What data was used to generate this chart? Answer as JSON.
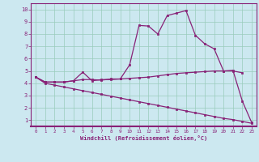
{
  "xlabel": "Windchill (Refroidissement éolien,°C)",
  "xlim": [
    -0.5,
    23.5
  ],
  "ylim": [
    0.5,
    10.5
  ],
  "xticks": [
    0,
    1,
    2,
    3,
    4,
    5,
    6,
    7,
    8,
    9,
    10,
    11,
    12,
    13,
    14,
    15,
    16,
    17,
    18,
    19,
    20,
    21,
    22,
    23
  ],
  "yticks": [
    1,
    2,
    3,
    4,
    5,
    6,
    7,
    8,
    9,
    10
  ],
  "bg_color": "#cce8f0",
  "line_color": "#882277",
  "grid_color": "#99ccbb",
  "spine_color": "#882277",
  "line2_x": [
    0,
    1,
    2,
    3,
    4,
    5,
    6,
    7,
    8,
    9,
    10,
    11,
    12,
    13,
    14,
    15,
    16,
    17,
    18,
    19,
    20,
    21,
    22,
    23
  ],
  "line2_y": [
    4.5,
    4.1,
    4.1,
    4.1,
    4.2,
    4.9,
    4.2,
    4.3,
    4.3,
    4.35,
    5.5,
    8.7,
    8.65,
    8.0,
    9.5,
    9.7,
    9.9,
    7.9,
    7.2,
    6.8,
    5.0,
    5.05,
    2.55,
    0.8
  ],
  "line1_x": [
    0,
    1,
    2,
    3,
    4,
    5,
    6,
    7,
    8,
    9,
    10,
    11,
    12,
    13,
    14,
    15,
    16,
    17,
    18,
    19,
    20,
    21,
    22
  ],
  "line1_y": [
    4.5,
    4.1,
    4.1,
    4.1,
    4.2,
    4.3,
    4.3,
    4.25,
    4.35,
    4.35,
    4.4,
    4.45,
    4.5,
    4.6,
    4.7,
    4.8,
    4.85,
    4.9,
    4.95,
    5.0,
    5.0,
    5.0,
    4.85
  ],
  "line3_x": [
    0,
    1,
    2,
    3,
    4,
    5,
    6,
    7,
    8,
    9,
    10,
    11,
    12,
    13,
    14,
    15,
    16,
    17,
    18,
    19,
    20,
    21,
    22,
    23
  ],
  "line3_y": [
    4.5,
    4.0,
    3.85,
    3.7,
    3.55,
    3.4,
    3.25,
    3.1,
    2.95,
    2.8,
    2.65,
    2.5,
    2.35,
    2.2,
    2.05,
    1.9,
    1.75,
    1.6,
    1.45,
    1.3,
    1.15,
    1.05,
    0.9,
    0.75
  ]
}
